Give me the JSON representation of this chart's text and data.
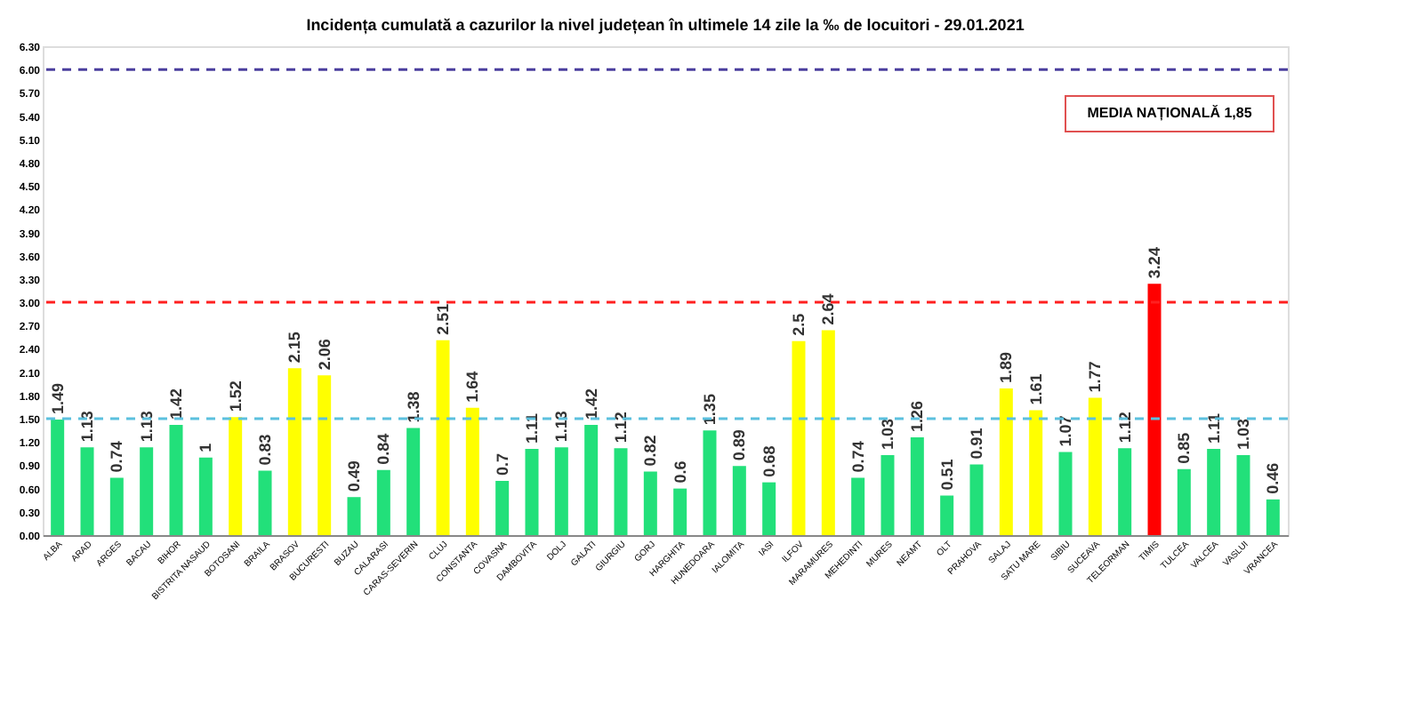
{
  "chart_data": {
    "type": "bar",
    "title": "Incidența cumulată a cazurilor la nivel județean în ultimele 14 zile la ‰ de locuitori - 29.01.2021",
    "categories": [
      "ALBA",
      "ARAD",
      "ARGES",
      "BACAU",
      "BIHOR",
      "BISTRITA NASAUD",
      "BOTOSANI",
      "BRAILA",
      "BRASOV",
      "BUCURESTI",
      "BUZAU",
      "CALARASI",
      "CARAS-SEVERIN",
      "CLUJ",
      "CONSTANTA",
      "COVASNA",
      "DAMBOVITA",
      "DOLJ",
      "GALATI",
      "GIURGIU",
      "GORJ",
      "HARGHITA",
      "HUNEDOARA",
      "IALOMITA",
      "IASI",
      "ILFOV",
      "MARAMURES",
      "MEHEDINTI",
      "MURES",
      "NEAMT",
      "OLT",
      "PRAHOVA",
      "SALAJ",
      "SATU MARE",
      "SIBIU",
      "SUCEAVA",
      "TELEORMAN",
      "TIMIS",
      "TULCEA",
      "VALCEA",
      "VASLUI",
      "VRANCEA"
    ],
    "values": [
      1.49,
      1.13,
      0.74,
      1.13,
      1.42,
      1,
      1.52,
      0.83,
      2.15,
      2.06,
      0.49,
      0.84,
      1.38,
      2.51,
      1.64,
      0.7,
      1.11,
      1.13,
      1.42,
      1.12,
      0.82,
      0.6,
      1.35,
      0.89,
      0.68,
      2.5,
      2.64,
      0.74,
      1.03,
      1.26,
      0.51,
      0.91,
      1.89,
      1.61,
      1.07,
      1.77,
      1.12,
      3.24,
      0.85,
      1.11,
      1.03,
      0.46
    ],
    "colors": [
      "#22e07a",
      "#22e07a",
      "#22e07a",
      "#22e07a",
      "#22e07a",
      "#22e07a",
      "#ffff00",
      "#22e07a",
      "#ffff00",
      "#ffff00",
      "#22e07a",
      "#22e07a",
      "#22e07a",
      "#ffff00",
      "#ffff00",
      "#22e07a",
      "#22e07a",
      "#22e07a",
      "#22e07a",
      "#22e07a",
      "#22e07a",
      "#22e07a",
      "#22e07a",
      "#22e07a",
      "#22e07a",
      "#ffff00",
      "#ffff00",
      "#22e07a",
      "#22e07a",
      "#22e07a",
      "#22e07a",
      "#22e07a",
      "#ffff00",
      "#ffff00",
      "#22e07a",
      "#ffff00",
      "#22e07a",
      "#ff0000",
      "#22e07a",
      "#22e07a",
      "#22e07a",
      "#22e07a"
    ],
    "ylim": [
      0,
      6.3
    ],
    "yticks": [
      {
        "value": 0,
        "label": "0.00"
      },
      {
        "value": 0.3,
        "label": "0.30"
      },
      {
        "value": 0.6,
        "label": "0.60"
      },
      {
        "value": 0.9,
        "label": "0.90"
      },
      {
        "value": 1.2,
        "label": "1.20"
      },
      {
        "value": 1.5,
        "label": "1.50"
      },
      {
        "value": 1.8,
        "label": "1.80"
      },
      {
        "value": 2.1,
        "label": "2.10"
      },
      {
        "value": 2.4,
        "label": "2.40"
      },
      {
        "value": 2.7,
        "label": "2.70"
      },
      {
        "value": 3,
        "label": "3.00"
      },
      {
        "value": 3.3,
        "label": "3.30"
      },
      {
        "value": 3.6,
        "label": "3.60"
      },
      {
        "value": 3.9,
        "label": "3.90"
      },
      {
        "value": 4.2,
        "label": "4.20"
      },
      {
        "value": 4.5,
        "label": "4.50"
      },
      {
        "value": 4.8,
        "label": "4.80"
      },
      {
        "value": 5.1,
        "label": "5.10"
      },
      {
        "value": 5.4,
        "label": "5.40"
      },
      {
        "value": 5.7,
        "label": "5.70"
      },
      {
        "value": 6,
        "label": "6.00"
      },
      {
        "value": 6.3,
        "label": "6.30"
      }
    ],
    "ref_lines": [
      {
        "axis": "y",
        "value": 6,
        "color": "#4b3f9e",
        "line_style": "dashed"
      },
      {
        "axis": "y",
        "value": 3,
        "color": "#ff2020",
        "line_style": "dashed"
      },
      {
        "axis": "y",
        "value": 1.5,
        "color": "#5bc0de",
        "line_style": "dashed"
      }
    ],
    "annotations": [
      "MEDIA NAȚIONALĂ 1,85"
    ],
    "data_labels": true,
    "grid": false
  }
}
